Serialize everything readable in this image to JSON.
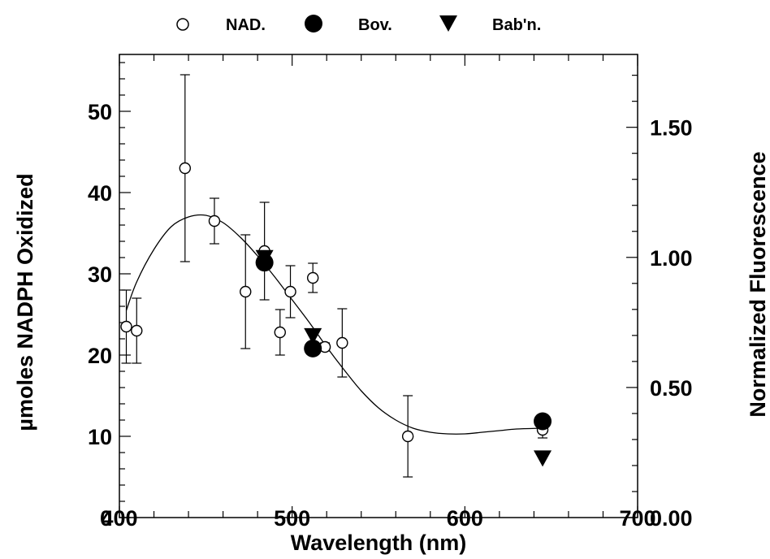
{
  "chart_data": {
    "type": "scatter",
    "xlabel": "Wavelength (nm)",
    "ylabel": "µmoles NADPH Oxidized",
    "y2label": "Normalized Fluorescence",
    "xlim": [
      400,
      700
    ],
    "ylim": [
      0,
      57
    ],
    "y2lim": [
      0,
      1.78
    ],
    "x_ticks": [
      "400",
      "500",
      "600",
      "700"
    ],
    "y_ticks": [
      "0",
      "10",
      "20",
      "30",
      "40",
      "50"
    ],
    "y2_ticks": [
      "0.00",
      "0.50",
      "1.00",
      "1.50"
    ],
    "legend_position": "top",
    "grid": false,
    "series": [
      {
        "name": "NAD.",
        "marker": "open-circle",
        "axis": "left",
        "points": [
          {
            "x": 404,
            "y": 23.5,
            "err": 4.5
          },
          {
            "x": 410,
            "y": 23.0,
            "err": 4.0
          },
          {
            "x": 438,
            "y": 43.0,
            "err": 11.5
          },
          {
            "x": 455,
            "y": 36.5,
            "err": 2.8
          },
          {
            "x": 473,
            "y": 27.8,
            "err": 7.0
          },
          {
            "x": 484,
            "y": 32.8,
            "err": 6.0
          },
          {
            "x": 493,
            "y": 22.8,
            "err": 2.8
          },
          {
            "x": 499,
            "y": 27.8,
            "err": 3.2
          },
          {
            "x": 512,
            "y": 29.5,
            "err": 1.8
          },
          {
            "x": 519,
            "y": 21.0,
            "err": 0.5
          },
          {
            "x": 529,
            "y": 21.5,
            "err": 4.2
          },
          {
            "x": 567,
            "y": 10.0,
            "err": 5.0
          },
          {
            "x": 645,
            "y": 10.8,
            "err": 1.0
          }
        ]
      },
      {
        "name": "Bov.",
        "marker": "filled-circle",
        "axis": "right",
        "points": [
          {
            "x": 484,
            "y": 0.98
          },
          {
            "x": 512,
            "y": 0.65
          },
          {
            "x": 645,
            "y": 0.37
          }
        ]
      },
      {
        "name": "Bab'n.",
        "marker": "filled-triangle",
        "axis": "right",
        "points": [
          {
            "x": 484,
            "y": 1.0
          },
          {
            "x": 512,
            "y": 0.7
          },
          {
            "x": 645,
            "y": 0.23
          }
        ]
      }
    ],
    "fit_curve": {
      "axis": "left",
      "points": [
        [
          404,
          25.5
        ],
        [
          410,
          29.0
        ],
        [
          420,
          33.0
        ],
        [
          430,
          35.8
        ],
        [
          440,
          37.0
        ],
        [
          450,
          37.2
        ],
        [
          460,
          36.3
        ],
        [
          470,
          34.5
        ],
        [
          480,
          32.2
        ],
        [
          490,
          29.6
        ],
        [
          500,
          26.8
        ],
        [
          510,
          24.0
        ],
        [
          520,
          21.0
        ],
        [
          530,
          18.2
        ],
        [
          540,
          15.6
        ],
        [
          550,
          13.5
        ],
        [
          560,
          12.0
        ],
        [
          570,
          11.0
        ],
        [
          580,
          10.5
        ],
        [
          590,
          10.3
        ],
        [
          600,
          10.3
        ],
        [
          610,
          10.5
        ],
        [
          620,
          10.7
        ],
        [
          630,
          10.9
        ],
        [
          645,
          11.0
        ]
      ]
    }
  }
}
